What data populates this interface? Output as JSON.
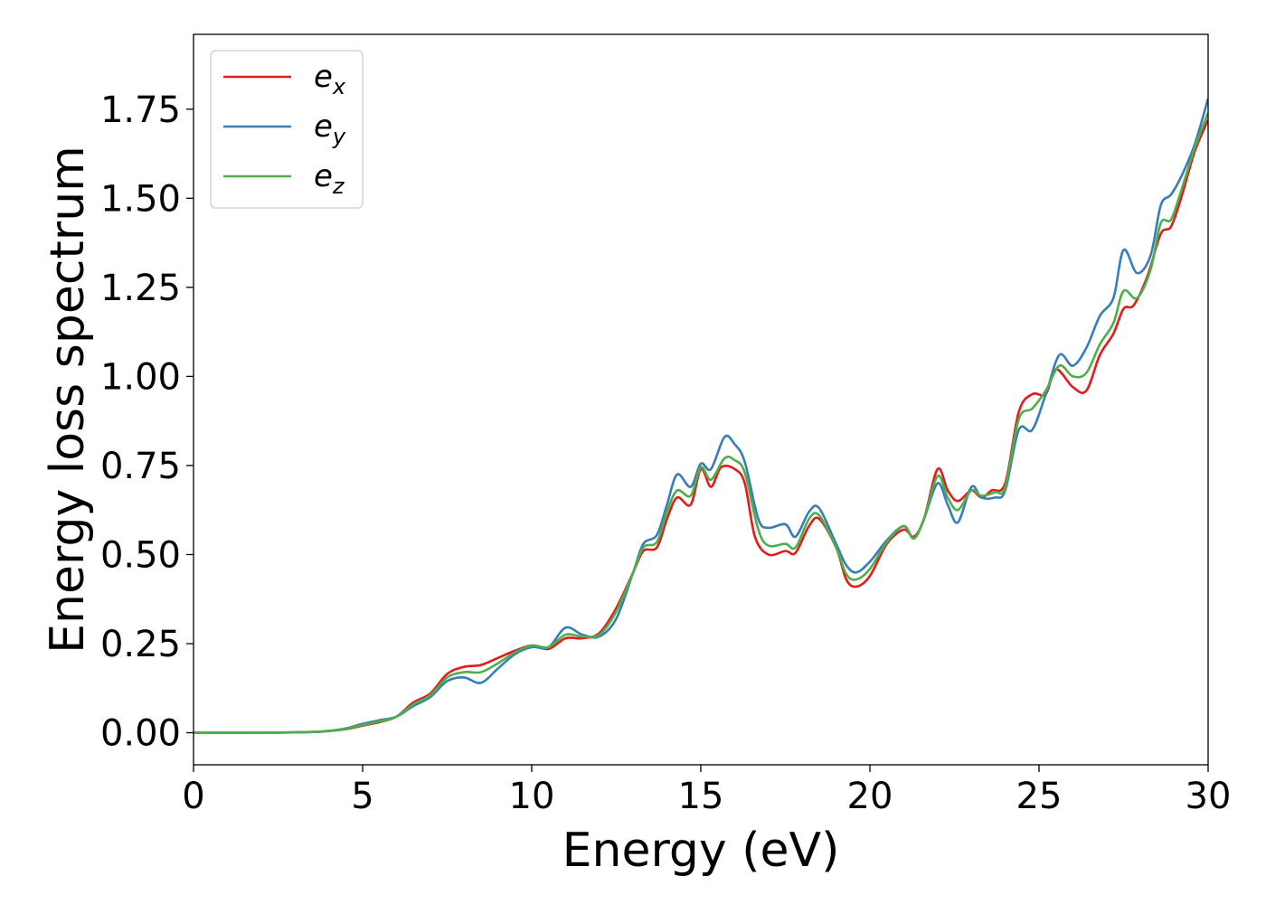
{
  "chart_data": {
    "type": "line",
    "title": "",
    "xlabel": "Energy (eV)",
    "ylabel": "Energy loss spectrum",
    "xlim": [
      0,
      30
    ],
    "ylim": [
      -0.09,
      1.96
    ],
    "xticks": [
      0,
      5,
      10,
      15,
      20,
      25,
      30
    ],
    "xtick_labels": [
      "0",
      "5",
      "10",
      "15",
      "20",
      "25",
      "30"
    ],
    "yticks": [
      0.0,
      0.25,
      0.5,
      0.75,
      1.0,
      1.25,
      1.5,
      1.75
    ],
    "ytick_labels": [
      "0.00",
      "0.25",
      "0.50",
      "0.75",
      "1.00",
      "1.25",
      "1.50",
      "1.75"
    ],
    "grid": false,
    "legend_position": "top-left",
    "series": [
      {
        "name": "e_x",
        "legend_base": "e",
        "legend_sub": "x",
        "color": "#e41a1c",
        "points": [
          [
            0,
            0
          ],
          [
            2,
            0
          ],
          [
            3.5,
            0.002
          ],
          [
            4,
            0.005
          ],
          [
            4.5,
            0.01
          ],
          [
            5,
            0.02
          ],
          [
            5.5,
            0.03
          ],
          [
            6,
            0.045
          ],
          [
            6.5,
            0.085
          ],
          [
            7,
            0.11
          ],
          [
            7.5,
            0.165
          ],
          [
            8,
            0.185
          ],
          [
            8.5,
            0.19
          ],
          [
            9,
            0.21
          ],
          [
            9.5,
            0.23
          ],
          [
            10,
            0.245
          ],
          [
            10.5,
            0.235
          ],
          [
            11,
            0.265
          ],
          [
            11.5,
            0.265
          ],
          [
            12,
            0.28
          ],
          [
            12.5,
            0.35
          ],
          [
            13,
            0.45
          ],
          [
            13.3,
            0.51
          ],
          [
            13.7,
            0.52
          ],
          [
            14,
            0.6
          ],
          [
            14.3,
            0.66
          ],
          [
            14.7,
            0.64
          ],
          [
            15,
            0.74
          ],
          [
            15.3,
            0.69
          ],
          [
            15.6,
            0.745
          ],
          [
            16,
            0.74
          ],
          [
            16.3,
            0.7
          ],
          [
            16.6,
            0.55
          ],
          [
            17,
            0.5
          ],
          [
            17.5,
            0.51
          ],
          [
            17.8,
            0.505
          ],
          [
            18.2,
            0.58
          ],
          [
            18.5,
            0.6
          ],
          [
            19,
            0.52
          ],
          [
            19.3,
            0.43
          ],
          [
            19.6,
            0.41
          ],
          [
            20,
            0.44
          ],
          [
            20.5,
            0.53
          ],
          [
            21,
            0.57
          ],
          [
            21.3,
            0.55
          ],
          [
            21.6,
            0.6
          ],
          [
            22,
            0.74
          ],
          [
            22.3,
            0.68
          ],
          [
            22.6,
            0.65
          ],
          [
            23,
            0.68
          ],
          [
            23.3,
            0.66
          ],
          [
            23.6,
            0.68
          ],
          [
            24,
            0.7
          ],
          [
            24.4,
            0.9
          ],
          [
            24.8,
            0.95
          ],
          [
            25.2,
            0.95
          ],
          [
            25.5,
            1.02
          ],
          [
            26,
            0.97
          ],
          [
            26.4,
            0.96
          ],
          [
            26.8,
            1.06
          ],
          [
            27.2,
            1.12
          ],
          [
            27.5,
            1.19
          ],
          [
            27.8,
            1.2
          ],
          [
            28.2,
            1.28
          ],
          [
            28.6,
            1.4
          ],
          [
            28.9,
            1.42
          ],
          [
            29.2,
            1.5
          ],
          [
            29.6,
            1.63
          ],
          [
            30,
            1.72
          ]
        ]
      },
      {
        "name": "e_y",
        "legend_base": "e",
        "legend_sub": "y",
        "color": "#377eb8",
        "points": [
          [
            0,
            0
          ],
          [
            2,
            0
          ],
          [
            3.5,
            0.002
          ],
          [
            4,
            0.005
          ],
          [
            4.5,
            0.012
          ],
          [
            5,
            0.025
          ],
          [
            5.5,
            0.035
          ],
          [
            6,
            0.045
          ],
          [
            6.5,
            0.075
          ],
          [
            7,
            0.1
          ],
          [
            7.5,
            0.145
          ],
          [
            8,
            0.155
          ],
          [
            8.5,
            0.14
          ],
          [
            9,
            0.18
          ],
          [
            9.5,
            0.22
          ],
          [
            10,
            0.24
          ],
          [
            10.5,
            0.24
          ],
          [
            11,
            0.295
          ],
          [
            11.5,
            0.275
          ],
          [
            12,
            0.27
          ],
          [
            12.5,
            0.32
          ],
          [
            13,
            0.45
          ],
          [
            13.3,
            0.53
          ],
          [
            13.7,
            0.555
          ],
          [
            14,
            0.64
          ],
          [
            14.3,
            0.725
          ],
          [
            14.7,
            0.69
          ],
          [
            15,
            0.755
          ],
          [
            15.3,
            0.74
          ],
          [
            15.7,
            0.83
          ],
          [
            16,
            0.81
          ],
          [
            16.3,
            0.76
          ],
          [
            16.7,
            0.6
          ],
          [
            17,
            0.575
          ],
          [
            17.5,
            0.585
          ],
          [
            17.8,
            0.55
          ],
          [
            18.2,
            0.62
          ],
          [
            18.5,
            0.63
          ],
          [
            19,
            0.53
          ],
          [
            19.3,
            0.47
          ],
          [
            19.6,
            0.45
          ],
          [
            20,
            0.48
          ],
          [
            20.5,
            0.54
          ],
          [
            21,
            0.58
          ],
          [
            21.3,
            0.545
          ],
          [
            21.6,
            0.6
          ],
          [
            22,
            0.7
          ],
          [
            22.3,
            0.64
          ],
          [
            22.6,
            0.59
          ],
          [
            23,
            0.69
          ],
          [
            23.3,
            0.66
          ],
          [
            23.7,
            0.66
          ],
          [
            24,
            0.68
          ],
          [
            24.4,
            0.85
          ],
          [
            24.8,
            0.85
          ],
          [
            25.2,
            0.95
          ],
          [
            25.6,
            1.06
          ],
          [
            26,
            1.03
          ],
          [
            26.4,
            1.08
          ],
          [
            26.8,
            1.17
          ],
          [
            27.2,
            1.22
          ],
          [
            27.5,
            1.355
          ],
          [
            27.9,
            1.29
          ],
          [
            28.3,
            1.34
          ],
          [
            28.6,
            1.48
          ],
          [
            28.9,
            1.51
          ],
          [
            29.2,
            1.56
          ],
          [
            29.6,
            1.65
          ],
          [
            30,
            1.78
          ]
        ]
      },
      {
        "name": "e_z",
        "legend_base": "e",
        "legend_sub": "z",
        "color": "#4daf4a",
        "points": [
          [
            0,
            0
          ],
          [
            2,
            0
          ],
          [
            3.5,
            0.002
          ],
          [
            4,
            0.005
          ],
          [
            4.5,
            0.011
          ],
          [
            5,
            0.022
          ],
          [
            5.5,
            0.032
          ],
          [
            6,
            0.045
          ],
          [
            6.5,
            0.08
          ],
          [
            7,
            0.105
          ],
          [
            7.5,
            0.155
          ],
          [
            8,
            0.17
          ],
          [
            8.5,
            0.17
          ],
          [
            9,
            0.195
          ],
          [
            9.5,
            0.225
          ],
          [
            10,
            0.245
          ],
          [
            10.5,
            0.24
          ],
          [
            11,
            0.275
          ],
          [
            11.5,
            0.27
          ],
          [
            12,
            0.275
          ],
          [
            12.5,
            0.34
          ],
          [
            13,
            0.45
          ],
          [
            13.3,
            0.52
          ],
          [
            13.7,
            0.535
          ],
          [
            14,
            0.62
          ],
          [
            14.3,
            0.68
          ],
          [
            14.7,
            0.665
          ],
          [
            15,
            0.745
          ],
          [
            15.3,
            0.71
          ],
          [
            15.7,
            0.77
          ],
          [
            16,
            0.765
          ],
          [
            16.3,
            0.73
          ],
          [
            16.7,
            0.57
          ],
          [
            17,
            0.525
          ],
          [
            17.5,
            0.53
          ],
          [
            17.8,
            0.52
          ],
          [
            18.2,
            0.6
          ],
          [
            18.5,
            0.61
          ],
          [
            19,
            0.52
          ],
          [
            19.3,
            0.445
          ],
          [
            19.6,
            0.43
          ],
          [
            20,
            0.46
          ],
          [
            20.5,
            0.535
          ],
          [
            21,
            0.58
          ],
          [
            21.3,
            0.545
          ],
          [
            21.6,
            0.6
          ],
          [
            22,
            0.72
          ],
          [
            22.3,
            0.66
          ],
          [
            22.6,
            0.625
          ],
          [
            23,
            0.68
          ],
          [
            23.3,
            0.665
          ],
          [
            23.7,
            0.675
          ],
          [
            24,
            0.69
          ],
          [
            24.4,
            0.88
          ],
          [
            24.8,
            0.91
          ],
          [
            25.2,
            0.96
          ],
          [
            25.6,
            1.03
          ],
          [
            26,
            1.0
          ],
          [
            26.4,
            1.01
          ],
          [
            26.8,
            1.09
          ],
          [
            27.2,
            1.15
          ],
          [
            27.5,
            1.24
          ],
          [
            27.9,
            1.22
          ],
          [
            28.3,
            1.3
          ],
          [
            28.6,
            1.43
          ],
          [
            28.9,
            1.44
          ],
          [
            29.2,
            1.52
          ],
          [
            29.6,
            1.64
          ],
          [
            30,
            1.74
          ]
        ]
      }
    ]
  }
}
